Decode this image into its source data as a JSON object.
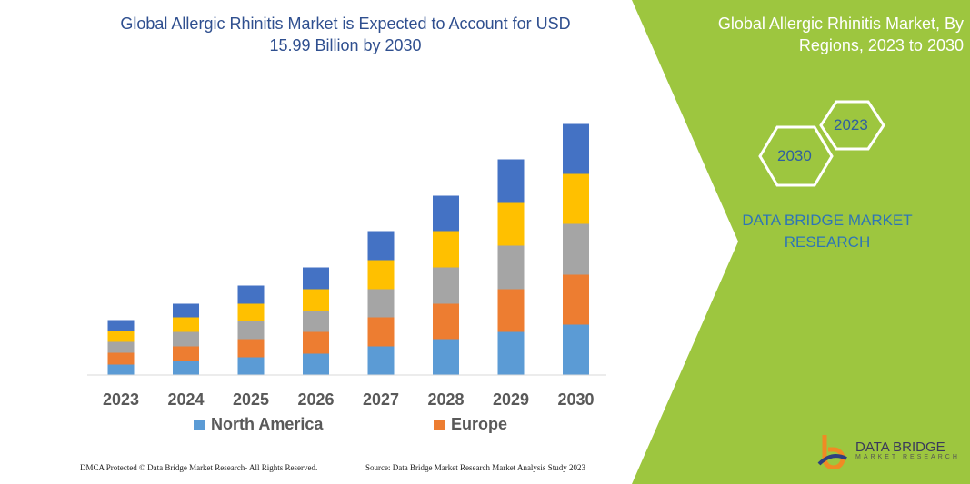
{
  "chart_data": {
    "type": "bar",
    "stacked": true,
    "title": "Global Allergic Rhinitis Market is Expected to Account for USD 15.99 Billion by 2030",
    "categories": [
      "2023",
      "2024",
      "2025",
      "2026",
      "2027",
      "2028",
      "2029",
      "2030"
    ],
    "series": [
      {
        "name": "North America",
        "color": "#5b9bd5",
        "values": [
          11,
          15,
          19,
          23,
          31,
          39,
          47,
          55
        ]
      },
      {
        "name": "Europe",
        "color": "#ed7d31",
        "values": [
          13,
          16,
          20,
          24,
          32,
          39,
          47,
          55
        ]
      },
      {
        "color": "#a5a5a5",
        "values": [
          12,
          16,
          20,
          23,
          31,
          40,
          48,
          56
        ]
      },
      {
        "color": "#ffc000",
        "values": [
          12,
          16,
          19,
          24,
          32,
          40,
          47,
          55
        ]
      },
      {
        "color": "#4472c4",
        "values": [
          12,
          15,
          20,
          24,
          32,
          39,
          48,
          55
        ]
      }
    ],
    "ylim": [
      0,
      290
    ],
    "grid": false,
    "legend_position": "bottom",
    "xlabel": "",
    "ylabel": ""
  },
  "side": {
    "title": "Global Allergic Rhinitis Market, By Regions, 2023 to 2030",
    "hex_a": "2023",
    "hex_b": "2030",
    "brand": "DATA BRIDGE MARKET RESEARCH",
    "accent": "#9dc63f"
  },
  "footer": {
    "dmca": "DMCA Protected © Data Bridge Market Research-  All Rights Reserved.",
    "source": "Source: Data Bridge Market Research  Market Analysis Study 2023"
  },
  "logo": {
    "name": "DATA BRIDGE",
    "sub": "MARKET RESEARCH"
  }
}
